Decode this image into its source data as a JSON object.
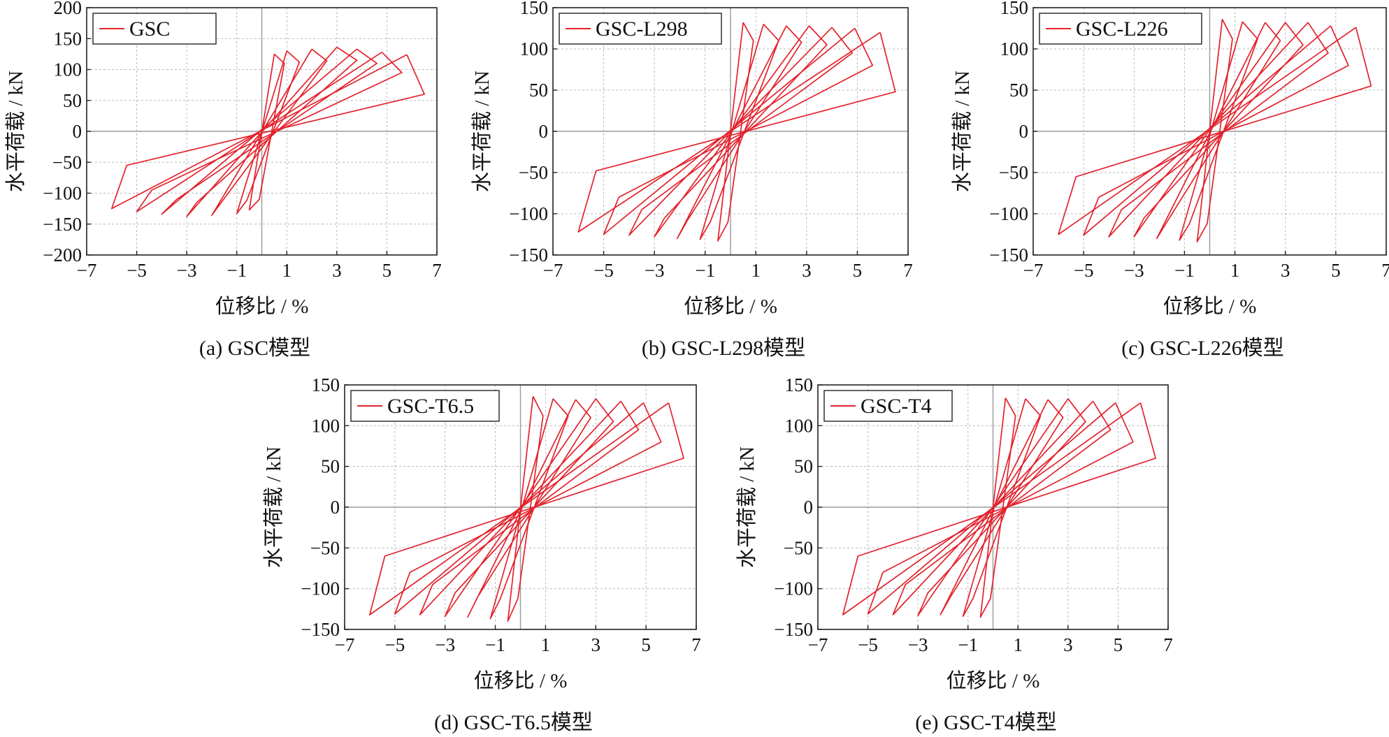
{
  "figure": {
    "panel_count": 5
  },
  "colors": {
    "curve": "#e3222c",
    "frame": "#222222",
    "grid": "#b8b8b8",
    "zero_line": "#9a9a9a"
  },
  "chart_data": [
    {
      "type": "line",
      "caption": "(a) GSC模型",
      "xlabel": "位移比 / %",
      "ylabel": "水平荷载 / kN",
      "xlim": [
        -7,
        7
      ],
      "ylim": [
        -200,
        200
      ],
      "xticks": [
        -7,
        -5,
        -3,
        -1,
        1,
        3,
        5,
        7
      ],
      "yticks": [
        -200,
        -150,
        -100,
        -50,
        0,
        50,
        100,
        150,
        200
      ],
      "grid": true,
      "legend_position": "top-left",
      "series": [
        {
          "name": "GSC",
          "loops": [
            {
              "x": [
                0.5,
                0.9,
                -0.1,
                -0.5,
                0.5
              ],
              "y": [
                125,
                110,
                -110,
                -127,
                125
              ]
            },
            {
              "x": [
                1.0,
                1.5,
                -0.6,
                -1.0,
                1.0
              ],
              "y": [
                130,
                112,
                -112,
                -133,
                130
              ]
            },
            {
              "x": [
                2.0,
                2.6,
                -1.6,
                -2.0,
                2.0
              ],
              "y": [
                133,
                114,
                -114,
                -136,
                133
              ]
            },
            {
              "x": [
                3.0,
                3.8,
                -2.6,
                -3.0,
                3.0
              ],
              "y": [
                136,
                115,
                -115,
                -138,
                136
              ]
            },
            {
              "x": [
                3.8,
                4.6,
                -3.4,
                -4.0,
                3.8
              ],
              "y": [
                133,
                110,
                -110,
                -134,
                133
              ]
            },
            {
              "x": [
                4.8,
                5.6,
                -4.4,
                -5.0,
                4.8
              ],
              "y": [
                128,
                95,
                -95,
                -130,
                128
              ]
            },
            {
              "x": [
                5.8,
                6.5,
                -5.4,
                -6.0,
                5.8
              ],
              "y": [
                124,
                60,
                -55,
                -125,
                124
              ]
            }
          ]
        }
      ]
    },
    {
      "type": "line",
      "caption": "(b) GSC-L298模型",
      "xlabel": "位移比 / %",
      "ylabel": "水平荷载 / kN",
      "xlim": [
        -7,
        7
      ],
      "ylim": [
        -150,
        150
      ],
      "xticks": [
        -7,
        -5,
        -3,
        -1,
        1,
        3,
        5,
        7
      ],
      "yticks": [
        -150,
        -100,
        -50,
        0,
        50,
        100,
        150
      ],
      "grid": true,
      "legend_position": "top-left",
      "series": [
        {
          "name": "GSC-L298",
          "loops": [
            {
              "x": [
                0.5,
                0.9,
                -0.1,
                -0.5,
                0.5
              ],
              "y": [
                132,
                110,
                -110,
                -133,
                132
              ]
            },
            {
              "x": [
                1.3,
                1.9,
                -0.8,
                -1.2,
                1.3
              ],
              "y": [
                130,
                110,
                -110,
                -131,
                130
              ]
            },
            {
              "x": [
                2.2,
                2.8,
                -1.7,
                -2.1,
                2.2
              ],
              "y": [
                128,
                108,
                -108,
                -130,
                128
              ]
            },
            {
              "x": [
                3.1,
                3.8,
                -2.6,
                -3.0,
                3.1
              ],
              "y": [
                128,
                105,
                -105,
                -128,
                128
              ]
            },
            {
              "x": [
                4.0,
                4.8,
                -3.5,
                -4.0,
                4.0
              ],
              "y": [
                126,
                95,
                -95,
                -126,
                126
              ]
            },
            {
              "x": [
                4.9,
                5.6,
                -4.4,
                -5.0,
                4.9
              ],
              "y": [
                125,
                80,
                -80,
                -125,
                125
              ]
            },
            {
              "x": [
                5.9,
                6.5,
                -5.3,
                -6.0,
                5.9
              ],
              "y": [
                120,
                48,
                -48,
                -122,
                120
              ]
            }
          ]
        }
      ]
    },
    {
      "type": "line",
      "caption": "(c) GSC-L226模型",
      "xlabel": "位移比 / %",
      "ylabel": "水平荷载 / kN",
      "xlim": [
        -7,
        7
      ],
      "ylim": [
        -150,
        150
      ],
      "xticks": [
        -7,
        -5,
        -3,
        -1,
        1,
        3,
        5,
        7
      ],
      "yticks": [
        -150,
        -100,
        -50,
        0,
        50,
        100,
        150
      ],
      "grid": true,
      "legend_position": "top-left",
      "series": [
        {
          "name": "GSC-L226",
          "loops": [
            {
              "x": [
                0.5,
                0.9,
                -0.1,
                -0.5,
                0.5
              ],
              "y": [
                136,
                112,
                -112,
                -134,
                136
              ]
            },
            {
              "x": [
                1.3,
                1.9,
                -0.8,
                -1.2,
                1.3
              ],
              "y": [
                133,
                112,
                -112,
                -132,
                133
              ]
            },
            {
              "x": [
                2.2,
                2.8,
                -1.7,
                -2.1,
                2.2
              ],
              "y": [
                132,
                110,
                -110,
                -130,
                132
              ]
            },
            {
              "x": [
                3.0,
                3.7,
                -2.6,
                -3.0,
                3.0
              ],
              "y": [
                132,
                105,
                -105,
                -128,
                132
              ]
            },
            {
              "x": [
                3.9,
                4.7,
                -3.5,
                -4.0,
                3.9
              ],
              "y": [
                132,
                95,
                -95,
                -128,
                132
              ]
            },
            {
              "x": [
                4.8,
                5.5,
                -4.4,
                -5.0,
                4.8
              ],
              "y": [
                128,
                80,
                -80,
                -126,
                128
              ]
            },
            {
              "x": [
                5.8,
                6.4,
                -5.3,
                -6.0,
                5.8
              ],
              "y": [
                126,
                55,
                -55,
                -125,
                126
              ]
            }
          ]
        }
      ]
    },
    {
      "type": "line",
      "caption": "(d) GSC-T6.5模型",
      "xlabel": "位移比 / %",
      "ylabel": "水平荷载 / kN",
      "xlim": [
        -7,
        7
      ],
      "ylim": [
        -150,
        150
      ],
      "xticks": [
        -7,
        -5,
        -3,
        -1,
        1,
        3,
        5,
        7
      ],
      "yticks": [
        -150,
        -100,
        -50,
        0,
        50,
        100,
        150
      ],
      "grid": true,
      "legend_position": "top-left",
      "series": [
        {
          "name": "GSC-T6.5",
          "loops": [
            {
              "x": [
                0.5,
                0.9,
                -0.1,
                -0.5,
                0.5
              ],
              "y": [
                136,
                112,
                -112,
                -140,
                136
              ]
            },
            {
              "x": [
                1.3,
                1.9,
                -0.8,
                -1.2,
                1.3
              ],
              "y": [
                133,
                112,
                -112,
                -137,
                133
              ]
            },
            {
              "x": [
                2.2,
                2.8,
                -1.7,
                -2.1,
                2.2
              ],
              "y": [
                132,
                110,
                -110,
                -135,
                132
              ]
            },
            {
              "x": [
                3.0,
                3.7,
                -2.6,
                -3.0,
                3.0
              ],
              "y": [
                133,
                105,
                -105,
                -134,
                133
              ]
            },
            {
              "x": [
                4.0,
                4.7,
                -3.5,
                -4.0,
                4.0
              ],
              "y": [
                130,
                95,
                -95,
                -132,
                130
              ]
            },
            {
              "x": [
                4.9,
                5.6,
                -4.4,
                -5.0,
                4.9
              ],
              "y": [
                128,
                80,
                -80,
                -131,
                128
              ]
            },
            {
              "x": [
                5.9,
                6.5,
                -5.4,
                -6.0,
                5.9
              ],
              "y": [
                128,
                60,
                -60,
                -132,
                128
              ]
            }
          ]
        }
      ]
    },
    {
      "type": "line",
      "caption": "(e) GSC-T4模型",
      "xlabel": "位移比 / %",
      "ylabel": "水平荷载 / kN",
      "xlim": [
        -7,
        7
      ],
      "ylim": [
        -150,
        150
      ],
      "xticks": [
        -7,
        -5,
        -3,
        -1,
        1,
        3,
        5,
        7
      ],
      "yticks": [
        -150,
        -100,
        -50,
        0,
        50,
        100,
        150
      ],
      "grid": true,
      "legend_position": "top-left",
      "series": [
        {
          "name": "GSC-T4",
          "loops": [
            {
              "x": [
                0.5,
                0.9,
                -0.1,
                -0.5,
                0.5
              ],
              "y": [
                134,
                112,
                -112,
                -135,
                134
              ]
            },
            {
              "x": [
                1.3,
                1.9,
                -0.8,
                -1.2,
                1.3
              ],
              "y": [
                133,
                112,
                -112,
                -134,
                133
              ]
            },
            {
              "x": [
                2.2,
                2.8,
                -1.7,
                -2.1,
                2.2
              ],
              "y": [
                132,
                110,
                -110,
                -132,
                132
              ]
            },
            {
              "x": [
                3.0,
                3.7,
                -2.6,
                -3.0,
                3.0
              ],
              "y": [
                133,
                105,
                -105,
                -133,
                133
              ]
            },
            {
              "x": [
                4.0,
                4.7,
                -3.5,
                -4.0,
                4.0
              ],
              "y": [
                130,
                95,
                -95,
                -132,
                130
              ]
            },
            {
              "x": [
                4.9,
                5.6,
                -4.4,
                -5.0,
                4.9
              ],
              "y": [
                128,
                80,
                -80,
                -131,
                128
              ]
            },
            {
              "x": [
                5.9,
                6.5,
                -5.4,
                -6.0,
                5.9
              ],
              "y": [
                128,
                60,
                -60,
                -132,
                128
              ]
            }
          ]
        }
      ]
    }
  ]
}
